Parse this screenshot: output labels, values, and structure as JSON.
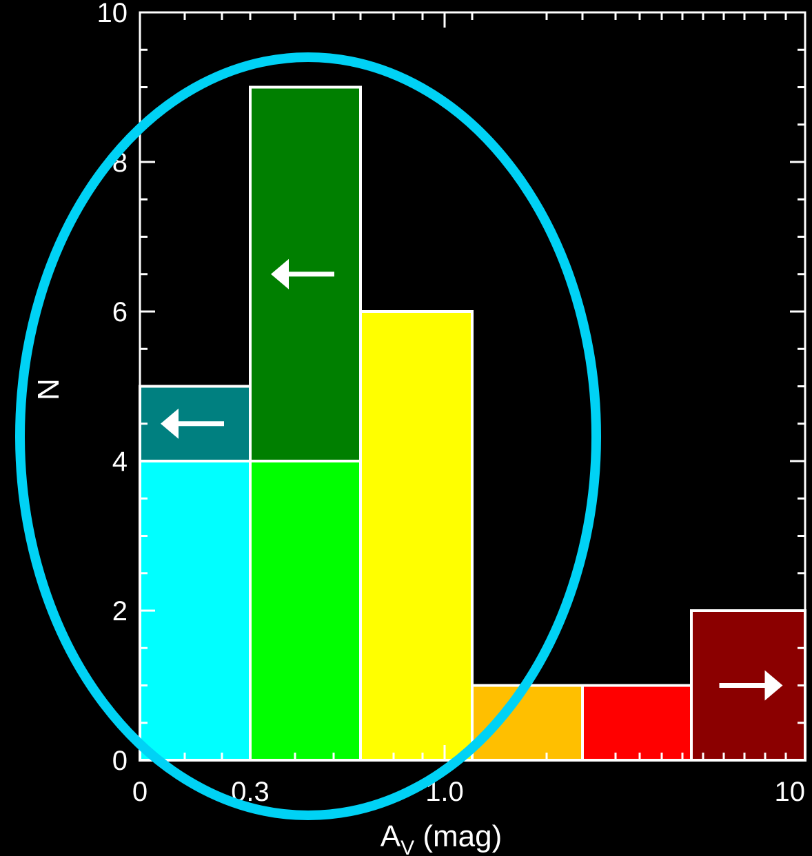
{
  "chart_data": {
    "type": "bar",
    "title": "",
    "xlabel": "A",
    "xlabel_sub": "V",
    "xlabel_unit": " (mag)",
    "ylabel": "N",
    "ylim": [
      0,
      10
    ],
    "yticks": [
      "0",
      "2",
      "4",
      "6",
      "8",
      "10"
    ],
    "xtick_labels": [
      "0",
      "0.3",
      "1.0",
      "10"
    ],
    "grid": false,
    "colors": {
      "background": "#000000",
      "axis": "#ffffff",
      "ellipse": "#00d2f5",
      "arrow": "#ffffff"
    },
    "bins": [
      {
        "segments": [
          {
            "from": 0,
            "to": 4,
            "color": "#00ffff"
          },
          {
            "from": 4,
            "to": 5,
            "color": "#008080",
            "upper_limit_arrow": "left"
          }
        ]
      },
      {
        "segments": [
          {
            "from": 0,
            "to": 4,
            "color": "#00ff00"
          },
          {
            "from": 4,
            "to": 9,
            "color": "#007f00",
            "upper_limit_arrow": "left"
          }
        ]
      },
      {
        "segments": [
          {
            "from": 0,
            "to": 6,
            "color": "#ffff00"
          }
        ]
      },
      {
        "segments": [
          {
            "from": 0,
            "to": 1,
            "color": "#ffbf00"
          }
        ]
      },
      {
        "segments": [
          {
            "from": 0,
            "to": 1,
            "color": "#ff0000"
          }
        ]
      },
      {
        "segments": [
          {
            "from": 0,
            "to": 2,
            "color": "#8b0000",
            "lower_limit_arrow": "right"
          }
        ]
      }
    ],
    "annotation": {
      "type": "ellipse",
      "encloses_bins": [
        0,
        1,
        2
      ],
      "color": "#00d2f5"
    }
  }
}
